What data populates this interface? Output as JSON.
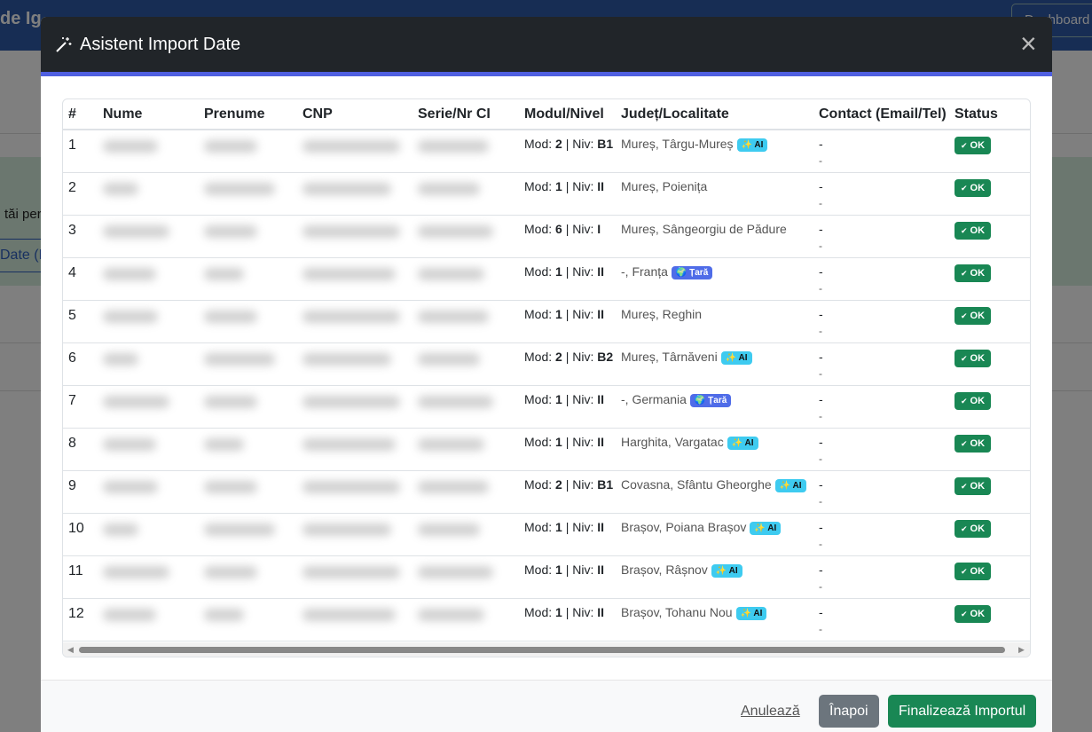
{
  "background": {
    "brand": "de Ig",
    "nav_button": "Dashboard",
    "side_text_1": "tăi per",
    "side_text_2": "Date (E"
  },
  "modal": {
    "title": "Asistent Import Date",
    "close": "×"
  },
  "table": {
    "headers": [
      "#",
      "Nume",
      "Prenume",
      "CNP",
      "Serie/Nr CI",
      "Modul/Nivel",
      "Județ/Localitate",
      "Contact (Email/Tel)",
      "Status"
    ],
    "mod_label": "Mod:",
    "separator": "|",
    "niv_label": "Niv:",
    "rows": [
      {
        "num": 1,
        "mod": 2,
        "niv": "B1",
        "location": "Mureș, Târgu-Mureș",
        "badge": "✨ AI",
        "email": "-",
        "phone": "-",
        "status": "OK"
      },
      {
        "num": 2,
        "mod": 1,
        "niv": "II",
        "location": "Mureș, Poienița",
        "badge": null,
        "email": "-",
        "phone": "-",
        "status": "OK"
      },
      {
        "num": 3,
        "mod": 6,
        "niv": "I",
        "location": "Mureș, Sângeorgiu de Pădure",
        "badge": null,
        "email": "-",
        "phone": "-",
        "status": "OK"
      },
      {
        "num": 4,
        "mod": 1,
        "niv": "II",
        "location": "-, Franța",
        "badge": "🌍 Țară",
        "email": "-",
        "phone": "-",
        "status": "OK"
      },
      {
        "num": 5,
        "mod": 1,
        "niv": "II",
        "location": "Mureș, Reghin",
        "badge": null,
        "email": "-",
        "phone": "-",
        "status": "OK"
      },
      {
        "num": 6,
        "mod": 2,
        "niv": "B2",
        "location": "Mureș, Târnăveni",
        "badge": "✨ AI",
        "email": "-",
        "phone": "-",
        "status": "OK"
      },
      {
        "num": 7,
        "mod": 1,
        "niv": "II",
        "location": "-, Germania",
        "badge": "🌍 Țară",
        "email": "-",
        "phone": "-",
        "status": "OK"
      },
      {
        "num": 8,
        "mod": 1,
        "niv": "II",
        "location": "Harghita, Vargatac",
        "badge": "✨ AI",
        "email": "-",
        "phone": "-",
        "status": "OK"
      },
      {
        "num": 9,
        "mod": 2,
        "niv": "B1",
        "location": "Covasna, Sfântu Gheorghe",
        "badge": "✨ AI",
        "email": "-",
        "phone": "-",
        "status": "OK"
      },
      {
        "num": 10,
        "mod": 1,
        "niv": "II",
        "location": "Brașov, Poiana Brașov",
        "badge": "✨ AI",
        "email": "-",
        "phone": "-",
        "status": "OK"
      },
      {
        "num": 11,
        "mod": 1,
        "niv": "II",
        "location": "Brașov, Râșnov",
        "badge": "✨ AI",
        "email": "-",
        "phone": "-",
        "status": "OK"
      },
      {
        "num": 12,
        "mod": 1,
        "niv": "II",
        "location": "Brașov, Tohanu Nou",
        "badge": "✨ AI",
        "email": "-",
        "phone": "-",
        "status": "OK"
      }
    ]
  },
  "footer": {
    "cancel": "Anulează",
    "back": "Înapoi",
    "finish": "Finalizează Importul"
  }
}
